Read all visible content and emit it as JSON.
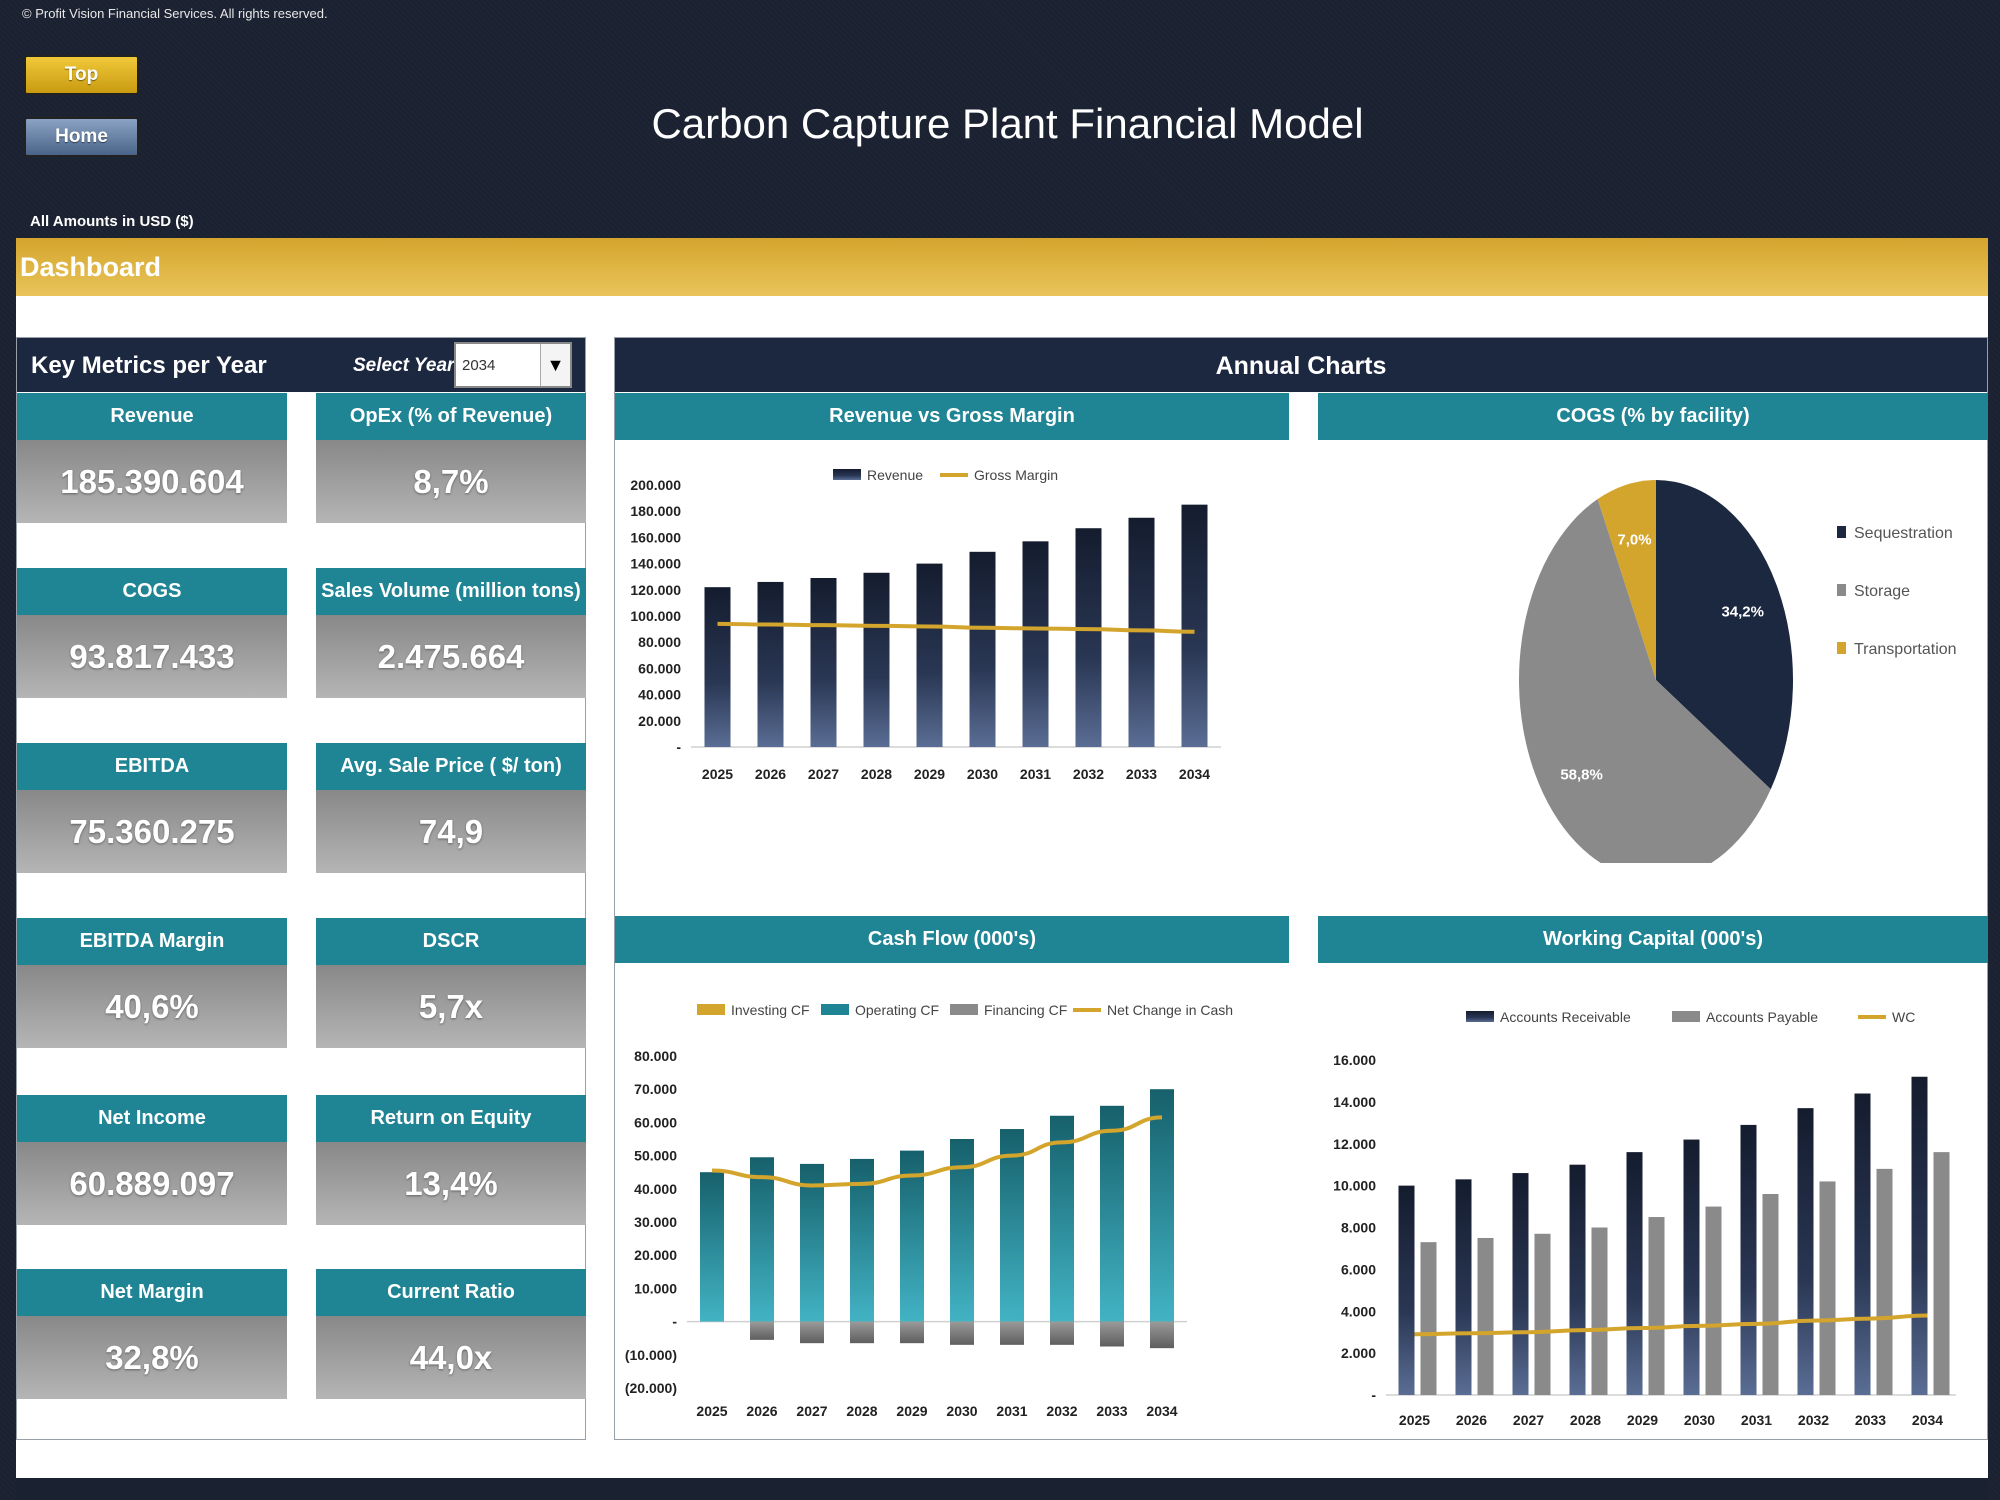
{
  "copyright": "© Profit Vision Financial Services. All rights reserved.",
  "nav": {
    "top_label": "Top",
    "home_label": "Home"
  },
  "title": "Carbon Capture Plant Financial Model",
  "amounts_note": "All Amounts in  USD ($)",
  "section_title": "Dashboard",
  "metrics": {
    "title": "Key Metrics per Year",
    "select_label": "Select Year",
    "selected_year": "2034",
    "cards": [
      {
        "label": "Revenue",
        "value": "185.390.604"
      },
      {
        "label": "OpEx (% of Revenue)",
        "value": "8,7%"
      },
      {
        "label": "COGS",
        "value": "93.817.433"
      },
      {
        "label": "Sales Volume (million tons)",
        "value": "2.475.664"
      },
      {
        "label": "EBITDA",
        "value": "75.360.275"
      },
      {
        "label": "Avg. Sale Price ( $/ ton)",
        "value": "74,9"
      },
      {
        "label": "EBITDA Margin",
        "value": "40,6%"
      },
      {
        "label": "DSCR",
        "value": "5,7x"
      },
      {
        "label": "Net Income",
        "value": "60.889.097"
      },
      {
        "label": "Return on Equity",
        "value": "13,4%"
      },
      {
        "label": "Net Margin",
        "value": "32,8%"
      },
      {
        "label": "Current Ratio",
        "value": "44,0x"
      }
    ]
  },
  "charts": {
    "title": "Annual Charts",
    "revenue_title": "Revenue vs Gross Margin",
    "cogs_title": "COGS (% by facility)",
    "cashflow_title": "Cash Flow (000's)",
    "wc_title": "Working Capital (000's)"
  },
  "colors": {
    "navy": "#1c2840",
    "teal": "#1f8494",
    "gold": "#d4a52d",
    "gray": "#888888"
  },
  "chart_data": [
    {
      "type": "bar",
      "title": "Revenue vs Gross Margin",
      "categories": [
        "2025",
        "2026",
        "2027",
        "2028",
        "2029",
        "2030",
        "2031",
        "2032",
        "2033",
        "2034"
      ],
      "series": [
        {
          "name": "Revenue",
          "type": "bar",
          "values": [
            122000,
            126000,
            129000,
            133000,
            140000,
            149000,
            157000,
            167000,
            175000,
            185000
          ]
        },
        {
          "name": "Gross Margin",
          "type": "line",
          "values": [
            94000,
            93500,
            93000,
            92500,
            92000,
            91000,
            90500,
            90000,
            89000,
            88000
          ]
        }
      ],
      "ylim": [
        0,
        200000
      ],
      "yticks": [
        "-",
        "20.000",
        "40.000",
        "60.000",
        "80.000",
        "100.000",
        "120.000",
        "140.000",
        "160.000",
        "180.000",
        "200.000"
      ],
      "legend": "top"
    },
    {
      "type": "pie",
      "title": "COGS (% by facility)",
      "labels": [
        "Sequestration",
        "Storage",
        "Transportation"
      ],
      "values": [
        34.2,
        58.8,
        7.0
      ],
      "value_labels": [
        "34,2%",
        "58,8%",
        "7,0%"
      ],
      "colors": [
        "#1c2840",
        "#8a8a8a",
        "#d4a52d"
      ],
      "legend": "right"
    },
    {
      "type": "bar",
      "title": "Cash Flow (000's)",
      "categories": [
        "2025",
        "2026",
        "2027",
        "2028",
        "2029",
        "2030",
        "2031",
        "2032",
        "2033",
        "2034"
      ],
      "series": [
        {
          "name": "Investing CF",
          "type": "bar",
          "values": [
            0,
            -1000,
            -1000,
            -1000,
            -1000,
            -1000,
            -1000,
            -1000,
            -1000,
            -1000
          ]
        },
        {
          "name": "Operating CF",
          "type": "bar",
          "values": [
            45000,
            49500,
            47500,
            49000,
            51500,
            55000,
            58000,
            62000,
            65000,
            70000
          ]
        },
        {
          "name": "Financing CF",
          "type": "bar",
          "values": [
            0,
            -5500,
            -6500,
            -6500,
            -6500,
            -7000,
            -7000,
            -7000,
            -7500,
            -8000
          ]
        },
        {
          "name": "Net Change in Cash",
          "type": "line",
          "values": [
            45500,
            43500,
            41000,
            41500,
            44000,
            46500,
            50000,
            54000,
            57500,
            61500
          ]
        }
      ],
      "ylim": [
        -20000,
        80000
      ],
      "yticks": [
        "(20.000)",
        "(10.000)",
        "-",
        "10.000",
        "20.000",
        "30.000",
        "40.000",
        "50.000",
        "60.000",
        "70.000",
        "80.000"
      ],
      "legend": "top"
    },
    {
      "type": "bar",
      "title": "Working Capital (000's)",
      "categories": [
        "2025",
        "2026",
        "2027",
        "2028",
        "2029",
        "2030",
        "2031",
        "2032",
        "2033",
        "2034"
      ],
      "series": [
        {
          "name": "Accounts Receivable",
          "type": "bar",
          "values": [
            10000,
            10300,
            10600,
            11000,
            11600,
            12200,
            12900,
            13700,
            14400,
            15200
          ]
        },
        {
          "name": "Accounts Payable",
          "type": "bar",
          "values": [
            7300,
            7500,
            7700,
            8000,
            8500,
            9000,
            9600,
            10200,
            10800,
            11600
          ]
        },
        {
          "name": "WC",
          "type": "line",
          "values": [
            2900,
            2950,
            3000,
            3100,
            3200,
            3300,
            3400,
            3550,
            3650,
            3800
          ]
        }
      ],
      "ylim": [
        0,
        16000
      ],
      "yticks": [
        "-",
        "2.000",
        "4.000",
        "6.000",
        "8.000",
        "10.000",
        "12.000",
        "14.000",
        "16.000"
      ],
      "legend": "top"
    }
  ]
}
